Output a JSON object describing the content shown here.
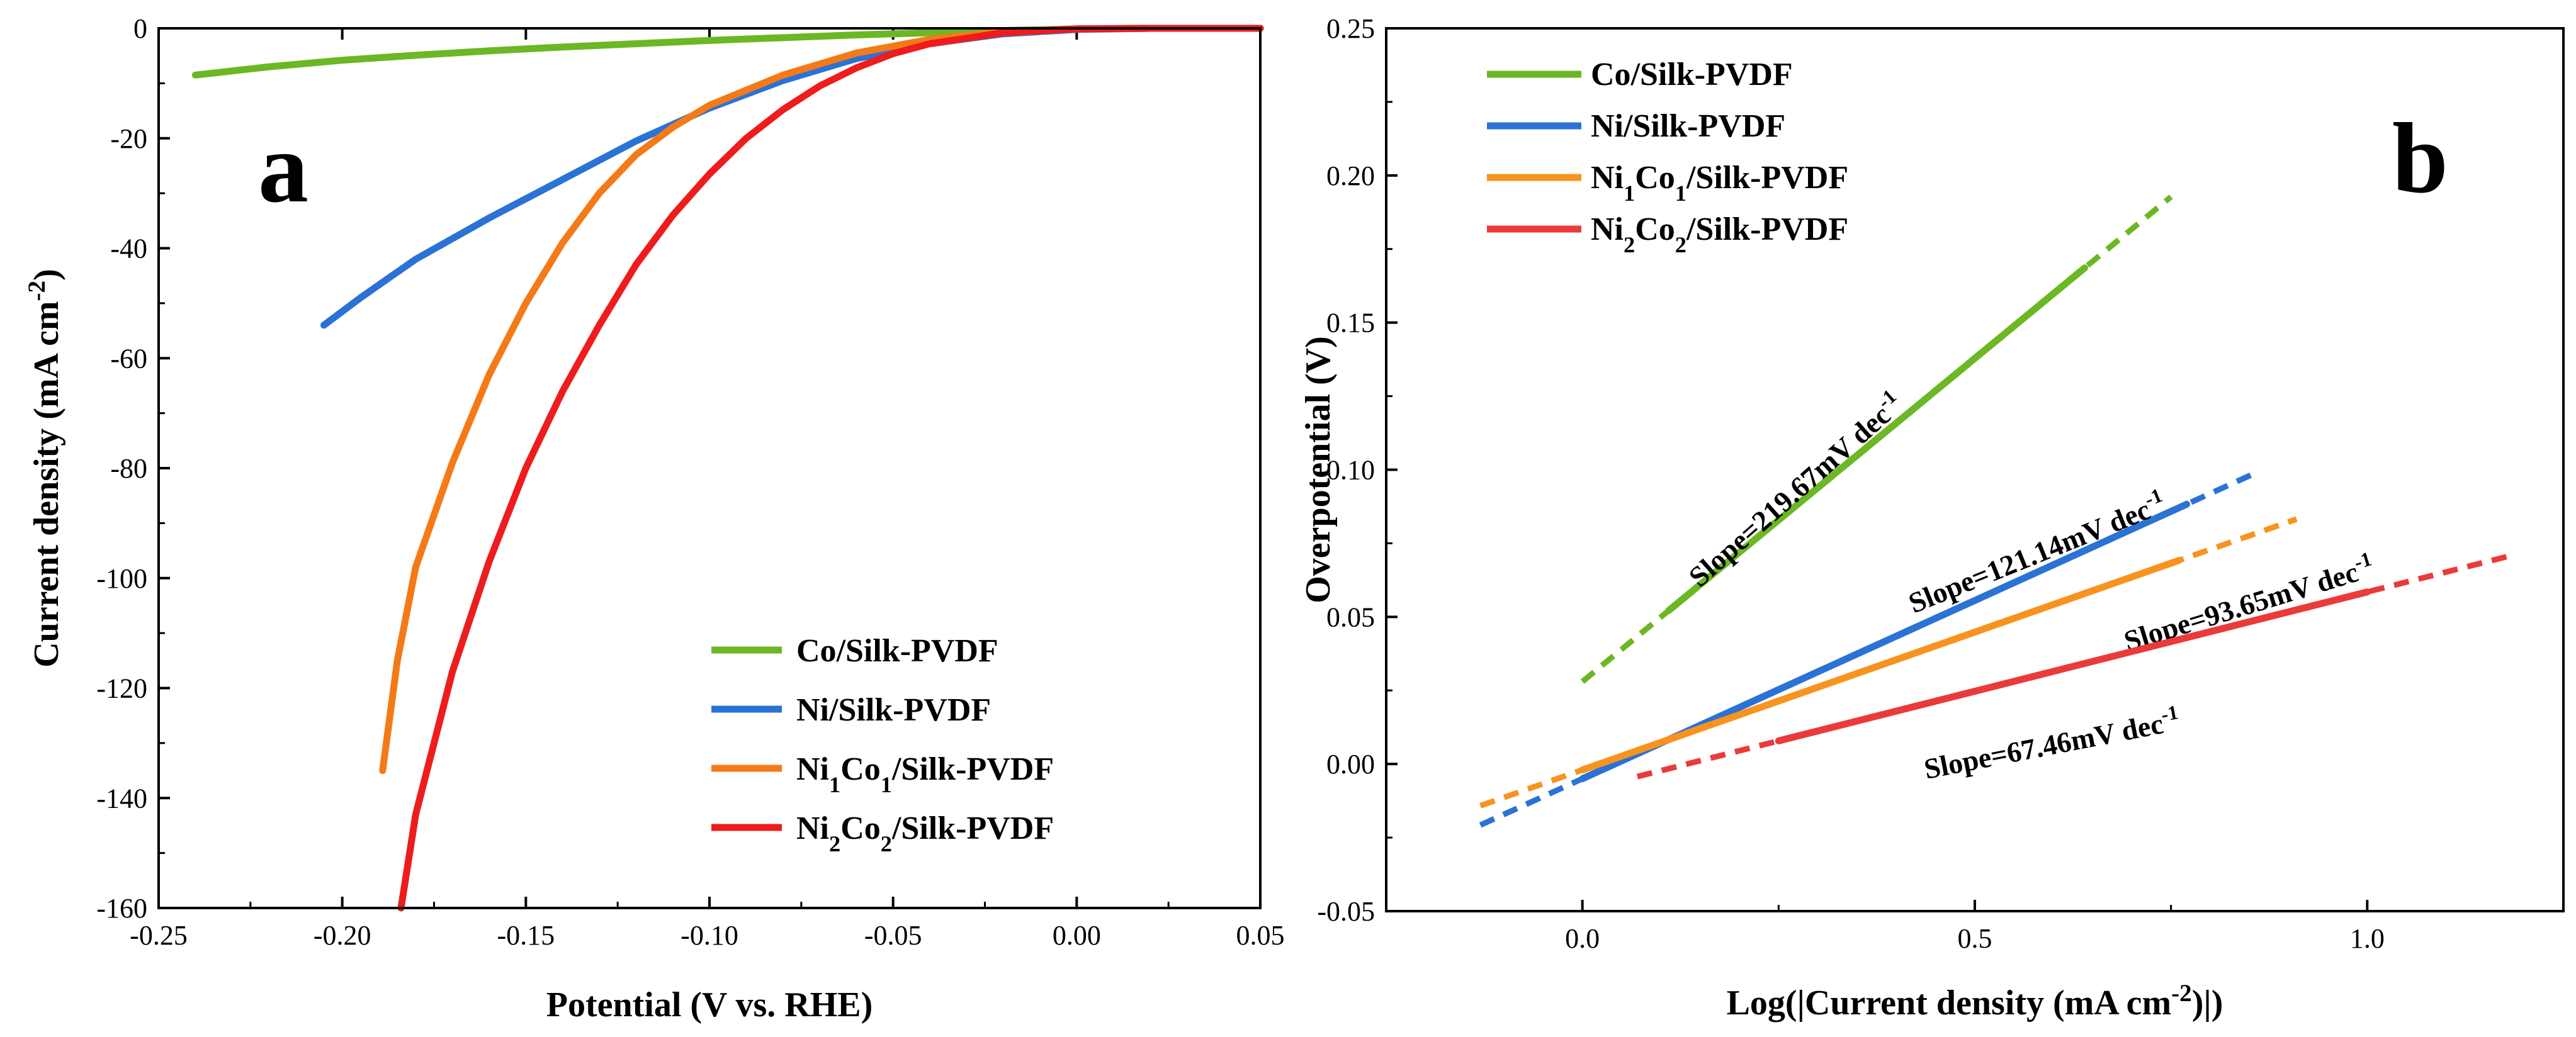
{
  "chart_data": [
    {
      "type": "line",
      "panel_label": "a",
      "xlabel": "Potential (V vs. RHE)",
      "ylabel": "Current density (mA cm-2)",
      "xlim": [
        -0.25,
        0.05
      ],
      "ylim": [
        -160,
        0
      ],
      "xticks": [
        -0.25,
        -0.2,
        -0.15,
        -0.1,
        -0.05,
        0.0,
        0.05
      ],
      "xtick_labels": [
        "-0.25",
        "-0.20",
        "-0.15",
        "-0.10",
        "-0.05",
        "0.00",
        "0.05"
      ],
      "yticks": [
        0,
        -20,
        -40,
        -60,
        -80,
        -100,
        -120,
        -140,
        -160
      ],
      "ytick_labels": [
        "0",
        "-20",
        "-40",
        "-60",
        "-80",
        "-100",
        "-120",
        "-140",
        "-160"
      ],
      "legend_position": "bottom-right",
      "series": [
        {
          "name": "Co/Silk-PVDF",
          "color": "#6bb724",
          "x": [
            -0.24,
            -0.22,
            -0.2,
            -0.18,
            -0.16,
            -0.14,
            -0.12,
            -0.1,
            -0.08,
            -0.06,
            -0.04,
            -0.02,
            0.0,
            0.02,
            0.05
          ],
          "y": [
            -8.5,
            -7.0,
            -5.8,
            -4.9,
            -4.1,
            -3.4,
            -2.8,
            -2.2,
            -1.7,
            -1.2,
            -0.8,
            -0.4,
            -0.1,
            0.0,
            0.0
          ]
        },
        {
          "name": "Ni/Silk-PVDF",
          "color": "#2a72d5",
          "x": [
            -0.205,
            -0.195,
            -0.18,
            -0.16,
            -0.14,
            -0.12,
            -0.1,
            -0.08,
            -0.06,
            -0.04,
            -0.02,
            0.0,
            0.02,
            0.05
          ],
          "y": [
            -54.0,
            -49.0,
            -42.0,
            -34.5,
            -27.5,
            -20.5,
            -14.5,
            -9.5,
            -5.5,
            -2.8,
            -1.0,
            -0.2,
            0.0,
            0.0
          ]
        },
        {
          "name": "Ni1Co1/Silk-PVDF",
          "color": "#f47a18",
          "x": [
            -0.189,
            -0.185,
            -0.18,
            -0.17,
            -0.16,
            -0.15,
            -0.14,
            -0.13,
            -0.12,
            -0.11,
            -0.1,
            -0.08,
            -0.06,
            -0.04,
            -0.02,
            0.0,
            0.02,
            0.05
          ],
          "y": [
            -135.0,
            -115.0,
            -98.0,
            -79.0,
            -63.0,
            -50.0,
            -39.0,
            -30.0,
            -23.0,
            -18.0,
            -14.0,
            -8.5,
            -4.5,
            -2.0,
            -0.6,
            -0.1,
            0.0,
            0.0
          ]
        },
        {
          "name": "Ni2Co2/Silk-PVDF",
          "color": "#ee1c1c",
          "x": [
            -0.184,
            -0.18,
            -0.17,
            -0.16,
            -0.15,
            -0.14,
            -0.13,
            -0.12,
            -0.11,
            -0.1,
            -0.09,
            -0.08,
            -0.07,
            -0.06,
            -0.05,
            -0.04,
            -0.02,
            0.0,
            0.02,
            0.05
          ],
          "y": [
            -160.0,
            -143.0,
            -117.0,
            -97.0,
            -80.0,
            -66.0,
            -54.0,
            -43.0,
            -34.0,
            -26.5,
            -20.0,
            -14.8,
            -10.5,
            -7.2,
            -4.6,
            -2.8,
            -0.8,
            -0.1,
            0.0,
            0.0
          ]
        }
      ]
    },
    {
      "type": "line",
      "panel_label": "b",
      "xlabel": "Log(|Current density (mA cm-2)|)",
      "ylabel": "Overpotential (V)",
      "xlim": [
        -0.25,
        1.25
      ],
      "ylim": [
        -0.05,
        0.25
      ],
      "xticks": [
        0.0,
        0.5,
        1.0
      ],
      "xtick_labels": [
        "0.0",
        "0.5",
        "1.0"
      ],
      "yticks": [
        -0.05,
        0.0,
        0.05,
        0.1,
        0.15,
        0.2,
        0.25
      ],
      "ytick_labels": [
        "-0.05",
        "0.00",
        "0.05",
        "0.10",
        "0.15",
        "0.20",
        "0.25"
      ],
      "legend_position": "top-left",
      "series": [
        {
          "name": "Co/Silk-PVDF",
          "color": "#6bb724",
          "solid_x": [
            0.11,
            0.64
          ],
          "dashed_x": [
            0.0,
            0.75
          ],
          "intercept": 0.028,
          "slope_value": 0.21967,
          "slope_label": "Slope=219.67mV dec-1"
        },
        {
          "name": "Ni/Silk-PVDF",
          "color": "#2a72d5",
          "solid_x": [
            0.0,
            0.77
          ],
          "dashed_x": [
            -0.13,
            0.86
          ],
          "intercept": -0.005,
          "slope_value": 0.12114,
          "slope_label": "Slope=121.14mV dec-1"
        },
        {
          "name": "Ni1Co1/Silk-PVDF",
          "color": "#f7931e",
          "solid_x": [
            0.0,
            0.76
          ],
          "dashed_x": [
            -0.13,
            0.91
          ],
          "intercept": -0.002,
          "slope_value": 0.09365,
          "slope_label": "Slope=93.65mV dec-1"
        },
        {
          "name": "Ni2Co2/Silk-PVDF",
          "color": "#ea3a3a",
          "solid_x": [
            0.25,
            1.0
          ],
          "dashed_x": [
            0.07,
            1.18
          ],
          "intercept": -0.009,
          "slope_value": 0.06746,
          "slope_label": "Slope=67.46mV dec-1"
        }
      ]
    }
  ]
}
